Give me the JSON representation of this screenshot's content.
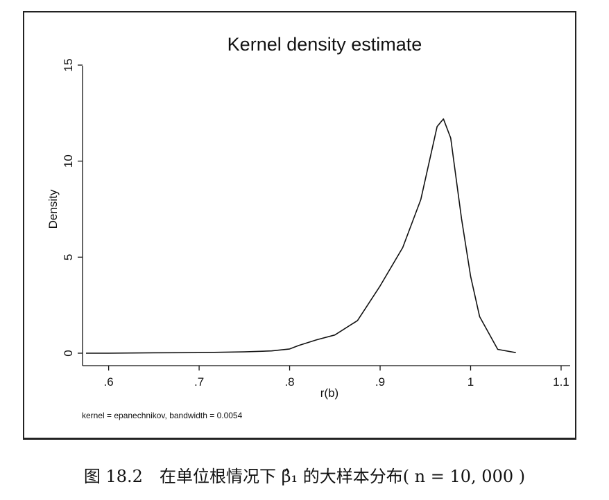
{
  "caption": "图 18.2　在单位根情况下 β̂₁ 的大样本分布( n = 10, 000 )",
  "chart_data": {
    "type": "line",
    "title": "Kernel density estimate",
    "xlabel": "r(b)",
    "ylabel": "Density",
    "note": "kernel = epanechnikov, bandwidth = 0.0054",
    "xlim": [
      0.575,
      1.11
    ],
    "ylim": [
      0,
      15
    ],
    "x_ticks": [
      0.6,
      0.7,
      0.8,
      0.9,
      1.0,
      1.1
    ],
    "x_tick_labels": [
      ".6",
      ".7",
      ".8",
      ".9",
      "1",
      "1.1"
    ],
    "y_ticks": [
      0,
      5,
      10,
      15
    ],
    "y_tick_labels": [
      "0",
      "5",
      "10",
      "15"
    ],
    "grid": false,
    "line_color": "#111111",
    "series": [
      {
        "x": [
          0.575,
          0.6,
          0.65,
          0.7,
          0.75,
          0.78,
          0.8,
          0.81,
          0.83,
          0.85,
          0.875,
          0.9,
          0.925,
          0.945,
          0.963,
          0.97,
          0.978,
          0.99,
          1.0,
          1.01,
          1.03,
          1.05
        ],
        "y": [
          0.0,
          0.0,
          0.02,
          0.03,
          0.07,
          0.12,
          0.22,
          0.4,
          0.7,
          0.95,
          1.7,
          3.5,
          5.5,
          8.0,
          11.8,
          12.2,
          11.2,
          7.0,
          4.0,
          1.9,
          0.2,
          0.03
        ]
      }
    ]
  }
}
